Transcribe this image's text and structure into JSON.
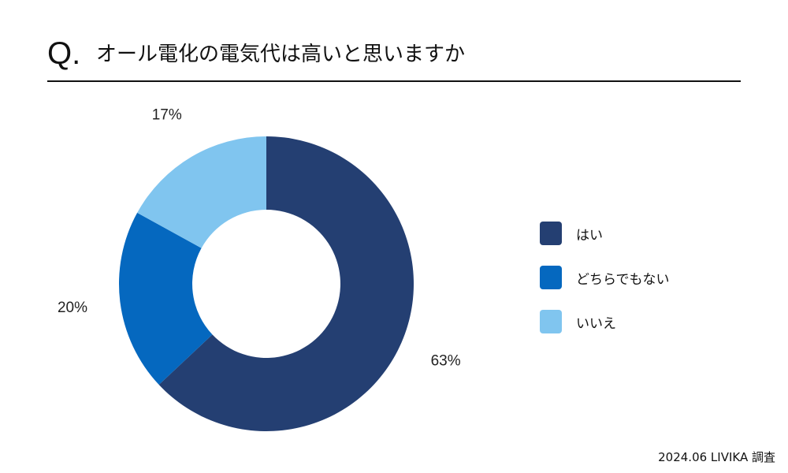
{
  "header": {
    "q_mark": "Q.",
    "title": "オール電化の電気代は高いと思いますか"
  },
  "chart_data": {
    "type": "pie",
    "donut": true,
    "categories": [
      "はい",
      "どちらでもない",
      "いいえ"
    ],
    "values": [
      63,
      20,
      17
    ],
    "labels": [
      "63%",
      "20%",
      "17%"
    ],
    "colors": [
      "#243f72",
      "#0568bf",
      "#80c5ef"
    ],
    "legend_placement": "right"
  },
  "source": "2024.06 LIVIKA 調査"
}
